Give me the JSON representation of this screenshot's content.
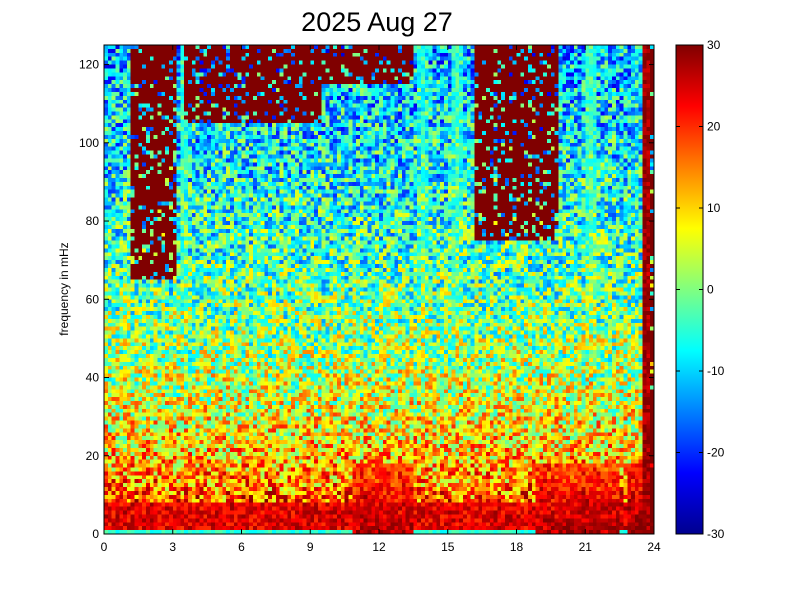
{
  "chart_data": {
    "type": "heatmap",
    "title": "2025 Aug 27",
    "xlabel": "",
    "ylabel": "frequency in mHz",
    "xlim": [
      0,
      24
    ],
    "ylim": [
      0,
      125
    ],
    "x_ticks": [
      0,
      3,
      6,
      9,
      12,
      15,
      18,
      21,
      24
    ],
    "y_ticks": [
      0,
      20,
      40,
      60,
      80,
      100,
      120
    ],
    "colorbar": {
      "range": [
        -30,
        30
      ],
      "ticks": [
        -30,
        -20,
        -10,
        0,
        10,
        20,
        30
      ],
      "colormap": "jet",
      "colors": [
        "#00008f",
        "#0000ff",
        "#0080ff",
        "#00ffff",
        "#80ff80",
        "#ffff00",
        "#ff8000",
        "#ff0000",
        "#800000"
      ]
    },
    "grid": false,
    "resolution": {
      "x_bins": 144,
      "y_bins": 125
    },
    "noise_floor_db": 1,
    "low_band": {
      "freq_max": 8,
      "level_db": 24
    },
    "high_power_bursts": [
      {
        "t_start": 10.8,
        "t_end": 13.5,
        "level_db": 27
      },
      {
        "t_start": 18.8,
        "t_end": 22.5,
        "level_db": 27
      },
      {
        "t_start": 22.9,
        "t_end": 23.5,
        "level_db": 30
      }
    ],
    "vertical_streaks": [
      {
        "t": 3.5,
        "freq_top": 125,
        "level_db": -5
      },
      {
        "t": 6.7,
        "freq_top": 85,
        "level_db": -6
      },
      {
        "t": 11.0,
        "freq_top": 70,
        "level_db": -4
      },
      {
        "t": 13.9,
        "freq_top": 125,
        "level_db": -6
      },
      {
        "t": 15.4,
        "freq_top": 125,
        "level_db": -4
      },
      {
        "t": 21.2,
        "freq_top": 125,
        "level_db": -3
      },
      {
        "t": 23.2,
        "freq_top": 125,
        "level_db": -12
      },
      {
        "t": 23.65,
        "freq_top": 125,
        "level_db": 30
      }
    ],
    "saturated_regions": [
      {
        "t_start": 1.2,
        "t_end": 3.2,
        "freq_min": 65,
        "level_db": 30
      },
      {
        "t_start": 3.5,
        "t_end": 9.5,
        "freq_min": 105,
        "level_db": 30
      },
      {
        "t_start": 9.5,
        "t_end": 13.5,
        "freq_min": 115,
        "level_db": 30
      },
      {
        "t_start": 16.2,
        "t_end": 19.8,
        "freq_min": 75,
        "level_db": 30
      },
      {
        "t_start": 23.9,
        "t_end": 24,
        "freq_min": 0,
        "level_db": 30
      }
    ]
  }
}
